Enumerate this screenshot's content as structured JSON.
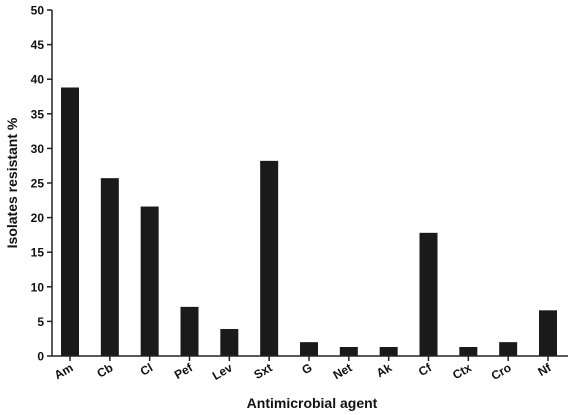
{
  "chart_data": {
    "type": "bar",
    "title": "",
    "xlabel": "Antimicrobial agent",
    "ylabel": "Isolates resistant %",
    "ylim": [
      0,
      50
    ],
    "yticks": [
      "0",
      "5",
      "10",
      "15",
      "20",
      "25",
      "30",
      "35",
      "40",
      "45",
      "50"
    ],
    "categories": [
      "Am",
      "Cb",
      "Cl",
      "Pef",
      "Lev",
      "Sxt",
      "G",
      "Net",
      "Ak",
      "Cf",
      "Ctx",
      "Cro",
      "Nf"
    ],
    "values": [
      38.8,
      25.7,
      21.6,
      7.1,
      3.9,
      28.2,
      2.0,
      1.3,
      1.3,
      17.8,
      1.3,
      2.0,
      6.6
    ],
    "grid": false,
    "legend": "none",
    "colors": {
      "bar": "#1a1a1a",
      "axis": "#222222",
      "text": "#111111"
    }
  }
}
